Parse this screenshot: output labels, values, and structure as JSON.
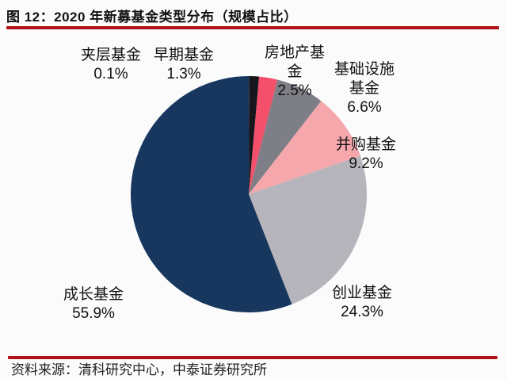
{
  "title": "图 12：2020 年新募基金类型分布（规模占比）",
  "source_note": "资料来源：清科研究中心，中泰证券研究所",
  "accent_red": "#b01218",
  "chart_data": {
    "type": "pie",
    "title": "2020 年新募基金类型分布（规模占比）",
    "unit": "percent",
    "start_angle_deg": 0,
    "direction": "clockwise",
    "legend": "none",
    "labels_style": "category name + percent, placed outside slices, no leader lines",
    "slices": [
      {
        "name": "夹层基金",
        "value": 0.1,
        "label": "0.1%",
        "color": "#2b2b33"
      },
      {
        "name": "早期基金",
        "value": 1.3,
        "label": "1.3%",
        "color": "#16161c"
      },
      {
        "name": "房地产基金",
        "value": 2.5,
        "label": "2.5%",
        "color": "#f4506c"
      },
      {
        "name": "基础设施基金",
        "value": 6.6,
        "label": "6.6%",
        "color": "#7e7e86"
      },
      {
        "name": "并购基金",
        "value": 9.2,
        "label": "9.2%",
        "color": "#f5a7ac"
      },
      {
        "name": "创业基金",
        "value": 24.3,
        "label": "24.3%",
        "color": "#b5b5bb"
      },
      {
        "name": "成长基金",
        "value": 55.9,
        "label": "55.9%",
        "color": "#17375e"
      }
    ]
  }
}
